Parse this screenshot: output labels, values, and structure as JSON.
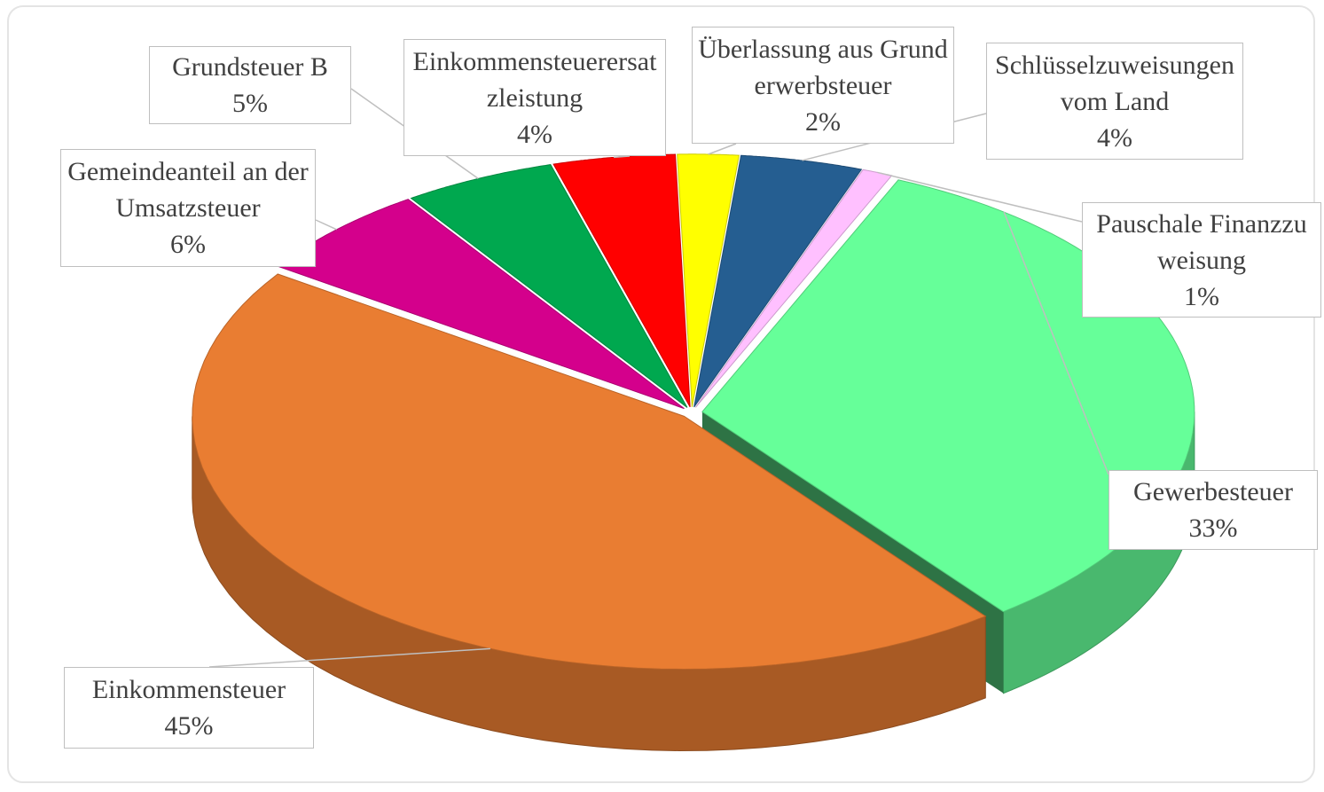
{
  "chart_data": {
    "type": "pie",
    "categories": [
      "Überlassung aus Grunderwerbsteuer",
      "Schlüsselzuweisungen vom Land",
      "Pauschale Finanzzuweisung",
      "Gewerbesteuer",
      "Einkommensteuer",
      "Gemeindeanteil an der Umsatzsteuer",
      "Grundsteuer B",
      "Einkommensteuerersatzleistung"
    ],
    "values": [
      2,
      4,
      1,
      33,
      45,
      6,
      5,
      4
    ],
    "value_labels": [
      "2%",
      "4%",
      "1%",
      "33%",
      "45%",
      "6%",
      "5%",
      "4%"
    ],
    "colors": [
      "#ffff00",
      "#255e91",
      "#ffc0ff",
      "#66ff99",
      "#e97d32",
      "#d4008c",
      "#00a84f",
      "#ff0000"
    ]
  }
}
